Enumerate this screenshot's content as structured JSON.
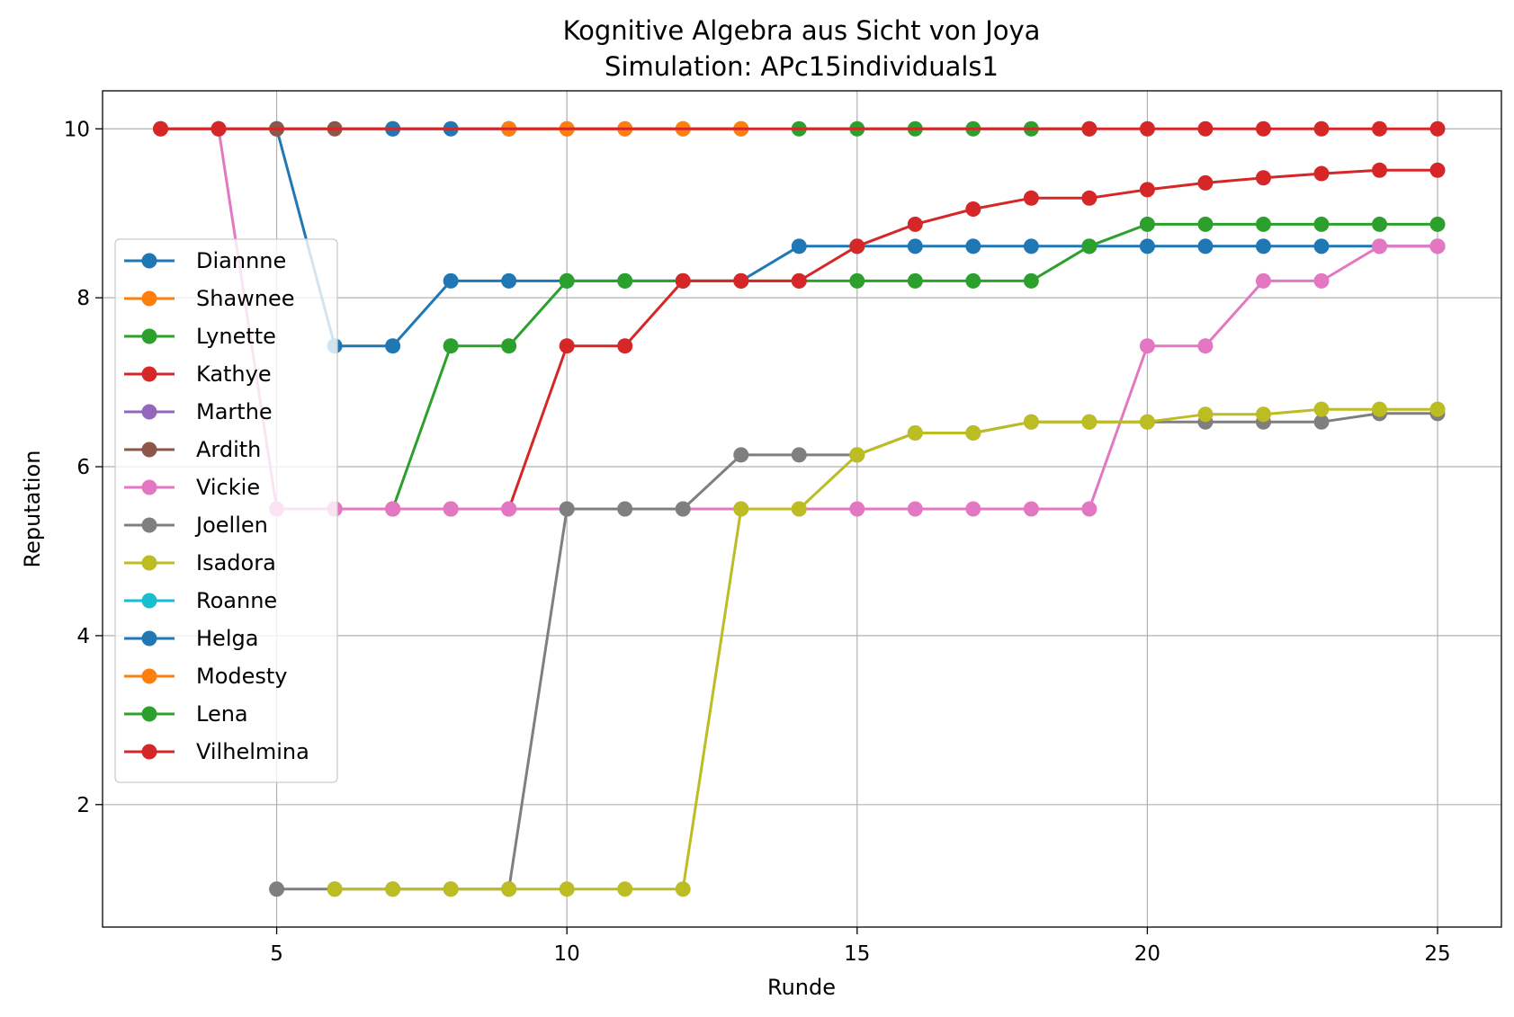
{
  "chart_data": {
    "type": "line",
    "title": "Kognitive Algebra aus Sicht von Joya",
    "subtitle": "Simulation: APc15individuals1",
    "xlabel": "Runde",
    "ylabel": "Reputation",
    "xlim": [
      2.0,
      26.1
    ],
    "ylim": [
      0.55,
      10.45
    ],
    "xticks": [
      5,
      10,
      15,
      20,
      25
    ],
    "yticks": [
      2,
      4,
      6,
      8,
      10
    ],
    "grid": true,
    "legend_position": "center-left",
    "series": [
      {
        "name": "Diannne",
        "color": "#1f77b4",
        "points": [
          [
            5,
            10
          ],
          [
            6,
            7.43
          ],
          [
            7,
            7.43
          ],
          [
            8,
            8.2
          ],
          [
            9,
            8.2
          ],
          [
            10,
            8.2
          ],
          [
            11,
            8.2
          ],
          [
            12,
            8.2
          ],
          [
            13,
            8.2
          ],
          [
            14,
            8.61
          ],
          [
            15,
            8.61
          ],
          [
            16,
            8.61
          ],
          [
            17,
            8.61
          ],
          [
            18,
            8.61
          ],
          [
            19,
            8.61
          ],
          [
            20,
            8.61
          ],
          [
            21,
            8.61
          ],
          [
            22,
            8.61
          ],
          [
            23,
            8.61
          ],
          [
            24,
            8.61
          ],
          [
            25,
            8.61
          ]
        ]
      },
      {
        "name": "Shawnee",
        "color": "#ff7f0e",
        "points": [
          [
            9,
            10
          ],
          [
            10,
            10
          ],
          [
            11,
            10
          ],
          [
            12,
            10
          ],
          [
            13,
            10
          ]
        ]
      },
      {
        "name": "Lynette",
        "color": "#2ca02c",
        "points": [
          [
            6,
            5.5
          ],
          [
            7,
            5.5
          ],
          [
            8,
            7.43
          ],
          [
            9,
            7.43
          ],
          [
            10,
            8.2
          ],
          [
            11,
            8.2
          ],
          [
            12,
            8.2
          ],
          [
            13,
            8.2
          ],
          [
            14,
            8.2
          ],
          [
            15,
            8.2
          ],
          [
            16,
            8.2
          ],
          [
            17,
            8.2
          ],
          [
            18,
            8.2
          ],
          [
            19,
            8.61
          ],
          [
            20,
            8.87
          ],
          [
            21,
            8.87
          ],
          [
            22,
            8.87
          ],
          [
            23,
            8.87
          ],
          [
            24,
            8.87
          ],
          [
            25,
            8.87
          ]
        ]
      },
      {
        "name": "Kathye",
        "color": "#d62728",
        "points": [
          [
            6,
            5.5
          ],
          [
            7,
            5.5
          ],
          [
            8,
            5.5
          ],
          [
            9,
            5.5
          ],
          [
            10,
            7.43
          ],
          [
            11,
            7.43
          ],
          [
            12,
            8.2
          ],
          [
            13,
            8.2
          ],
          [
            14,
            8.2
          ],
          [
            15,
            8.61
          ],
          [
            16,
            8.87
          ],
          [
            17,
            9.05
          ],
          [
            18,
            9.18
          ],
          [
            19,
            9.18
          ],
          [
            20,
            9.28
          ],
          [
            21,
            9.36
          ],
          [
            22,
            9.42
          ],
          [
            23,
            9.47
          ],
          [
            24,
            9.51
          ],
          [
            25,
            9.51
          ]
        ]
      },
      {
        "name": "Marthe",
        "color": "#9467bd",
        "points": []
      },
      {
        "name": "Ardith",
        "color": "#8c564b",
        "points": [
          [
            3,
            10
          ],
          [
            4,
            10
          ],
          [
            5,
            10
          ],
          [
            6,
            10
          ],
          [
            7,
            10
          ]
        ]
      },
      {
        "name": "Vickie",
        "color": "#e377c2",
        "points": [
          [
            4,
            10
          ],
          [
            5,
            5.5
          ],
          [
            6,
            5.5
          ],
          [
            7,
            5.5
          ],
          [
            8,
            5.5
          ],
          [
            9,
            5.5
          ],
          [
            10,
            5.5
          ],
          [
            11,
            5.5
          ],
          [
            12,
            5.5
          ],
          [
            13,
            5.5
          ],
          [
            14,
            5.5
          ],
          [
            15,
            5.5
          ],
          [
            16,
            5.5
          ],
          [
            17,
            5.5
          ],
          [
            18,
            5.5
          ],
          [
            19,
            5.5
          ],
          [
            20,
            7.43
          ],
          [
            21,
            7.43
          ],
          [
            22,
            8.2
          ],
          [
            23,
            8.2
          ],
          [
            24,
            8.61
          ],
          [
            25,
            8.61
          ]
        ]
      },
      {
        "name": "Joellen",
        "color": "#7f7f7f",
        "points": [
          [
            5,
            1
          ],
          [
            6,
            1
          ],
          [
            7,
            1
          ],
          [
            8,
            1
          ],
          [
            9,
            1
          ],
          [
            10,
            5.5
          ],
          [
            11,
            5.5
          ],
          [
            12,
            5.5
          ],
          [
            13,
            6.14
          ],
          [
            14,
            6.14
          ],
          [
            15,
            6.14
          ],
          [
            16,
            6.4
          ],
          [
            17,
            6.4
          ],
          [
            18,
            6.53
          ],
          [
            19,
            6.53
          ],
          [
            20,
            6.53
          ],
          [
            21,
            6.53
          ],
          [
            22,
            6.53
          ],
          [
            23,
            6.53
          ],
          [
            24,
            6.63
          ],
          [
            25,
            6.63
          ]
        ]
      },
      {
        "name": "Isadora",
        "color": "#bcbd22",
        "points": [
          [
            6,
            1
          ],
          [
            7,
            1
          ],
          [
            8,
            1
          ],
          [
            9,
            1
          ],
          [
            10,
            1
          ],
          [
            11,
            1
          ],
          [
            12,
            1
          ],
          [
            13,
            5.5
          ],
          [
            14,
            5.5
          ],
          [
            15,
            6.14
          ],
          [
            16,
            6.4
          ],
          [
            17,
            6.4
          ],
          [
            18,
            6.53
          ],
          [
            19,
            6.53
          ],
          [
            20,
            6.53
          ],
          [
            21,
            6.62
          ],
          [
            22,
            6.62
          ],
          [
            23,
            6.68
          ],
          [
            24,
            6.68
          ],
          [
            25,
            6.68
          ]
        ]
      },
      {
        "name": "Roanne",
        "color": "#17becf",
        "points": []
      },
      {
        "name": "Helga",
        "color": "#1f77b4",
        "points": [
          [
            7,
            10
          ],
          [
            8,
            10
          ],
          [
            9,
            10
          ]
        ]
      },
      {
        "name": "Modesty",
        "color": "#ff7f0e",
        "points": [
          [
            9,
            10
          ],
          [
            10,
            10
          ],
          [
            11,
            10
          ],
          [
            12,
            10
          ],
          [
            13,
            10
          ]
        ]
      },
      {
        "name": "Lena",
        "color": "#2ca02c",
        "points": [
          [
            14,
            10
          ],
          [
            15,
            10
          ],
          [
            16,
            10
          ],
          [
            17,
            10
          ],
          [
            18,
            10
          ],
          [
            19,
            10
          ]
        ]
      },
      {
        "name": "Vilhelmina",
        "color": "#d62728",
        "points": [
          [
            3,
            10
          ],
          [
            4,
            10
          ],
          [
            19,
            10
          ],
          [
            20,
            10
          ],
          [
            21,
            10
          ],
          [
            22,
            10
          ],
          [
            23,
            10
          ],
          [
            24,
            10
          ],
          [
            25,
            10
          ]
        ]
      }
    ]
  }
}
